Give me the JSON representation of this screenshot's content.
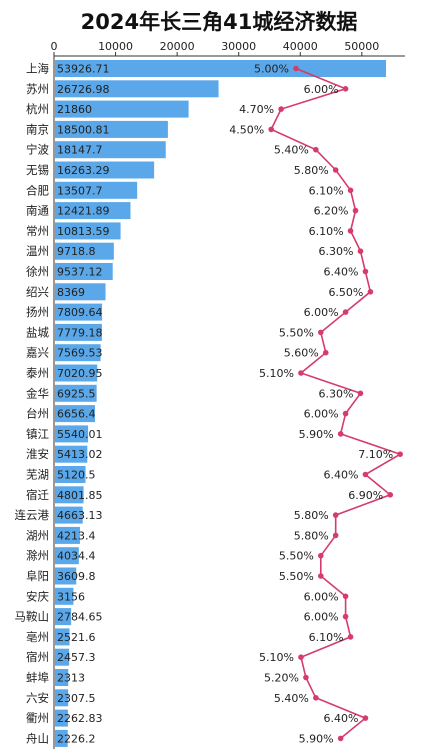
{
  "chart_data": {
    "type": "bar",
    "title": "2024年长三角41城经济数据",
    "xlabel": "",
    "ylabel": "",
    "xlim": [
      0,
      57000
    ],
    "ticks": [
      0,
      10000,
      20000,
      30000,
      40000,
      50000
    ],
    "tick_labels": [
      "0",
      "10000",
      "20000",
      "30000",
      "40000",
      "50000"
    ],
    "grid": false,
    "bar_color": "#5aa8ea",
    "line_color": "#d63c6b",
    "categories": [
      "上海",
      "苏州",
      "杭州",
      "南京",
      "宁波",
      "无锡",
      "合肥",
      "南通",
      "常州",
      "温州",
      "徐州",
      "绍兴",
      "扬州",
      "盐城",
      "嘉兴",
      "泰州",
      "金华",
      "台州",
      "镇江",
      "淮安",
      "芜湖",
      "宿迁",
      "连云港",
      "湖州",
      "滁州",
      "阜阳",
      "安庆",
      "马鞍山",
      "亳州",
      "宿州",
      "蚌埠",
      "六安",
      "衢州",
      "舟山"
    ],
    "value_labels": [
      "53926.71",
      "26726.98",
      "21860",
      "18500.81",
      "18147.7",
      "16263.29",
      "13507.7",
      "12421.89",
      "10813.59",
      "9718.8",
      "9537.12",
      "8369",
      "7809.64",
      "7779.18",
      "7569.53",
      "7020.95",
      "6925.5",
      "6656.4",
      "5540.01",
      "5413.02",
      "5120.5",
      "4801.85",
      "4663.13",
      "4213.4",
      "4034.4",
      "3609.8",
      "3156",
      "2784.65",
      "2521.6",
      "2457.3",
      "2313",
      "2307.5",
      "2262.83",
      "2226.2"
    ],
    "series": [
      {
        "values": [
          53926.71,
          26726.98,
          21860,
          18500.81,
          18147.7,
          16263.29,
          13507.7,
          12421.89,
          10813.59,
          9718.8,
          9537.12,
          8369,
          7809.64,
          7779.18,
          7569.53,
          7020.95,
          6925.5,
          6656.4,
          5540.01,
          5413.02,
          5120.5,
          4801.85,
          4663.13,
          4213.4,
          4034.4,
          3609.8,
          3156,
          2784.65,
          2521.6,
          2457.3,
          2313,
          2307.5,
          2262.83,
          2226.2
        ]
      },
      {
        "values": [
          5.0,
          6.0,
          4.7,
          4.5,
          5.4,
          5.8,
          6.1,
          6.2,
          6.1,
          6.3,
          6.4,
          6.5,
          6.0,
          5.5,
          5.6,
          5.1,
          6.3,
          6.0,
          5.9,
          7.1,
          6.4,
          6.9,
          5.8,
          5.8,
          5.5,
          5.5,
          6.0,
          6.0,
          6.1,
          5.1,
          5.2,
          5.4,
          6.4,
          5.9
        ],
        "labels": [
          "5.00%",
          "6.00%",
          "4.70%",
          "4.50%",
          "5.40%",
          "5.80%",
          "6.10%",
          "6.20%",
          "6.10%",
          "6.30%",
          "6.40%",
          "6.50%",
          "6.00%",
          "5.50%",
          "5.60%",
          "5.10%",
          "6.30%",
          "6.00%",
          "5.90%",
          "7.10%",
          "6.40%",
          "6.90%",
          "5.80%",
          "5.80%",
          "5.50%",
          "5.50%",
          "6.00%",
          "6.00%",
          "6.10%",
          "5.10%",
          "5.20%",
          "5.40%",
          "6.40%",
          "5.90%"
        ]
      }
    ]
  }
}
